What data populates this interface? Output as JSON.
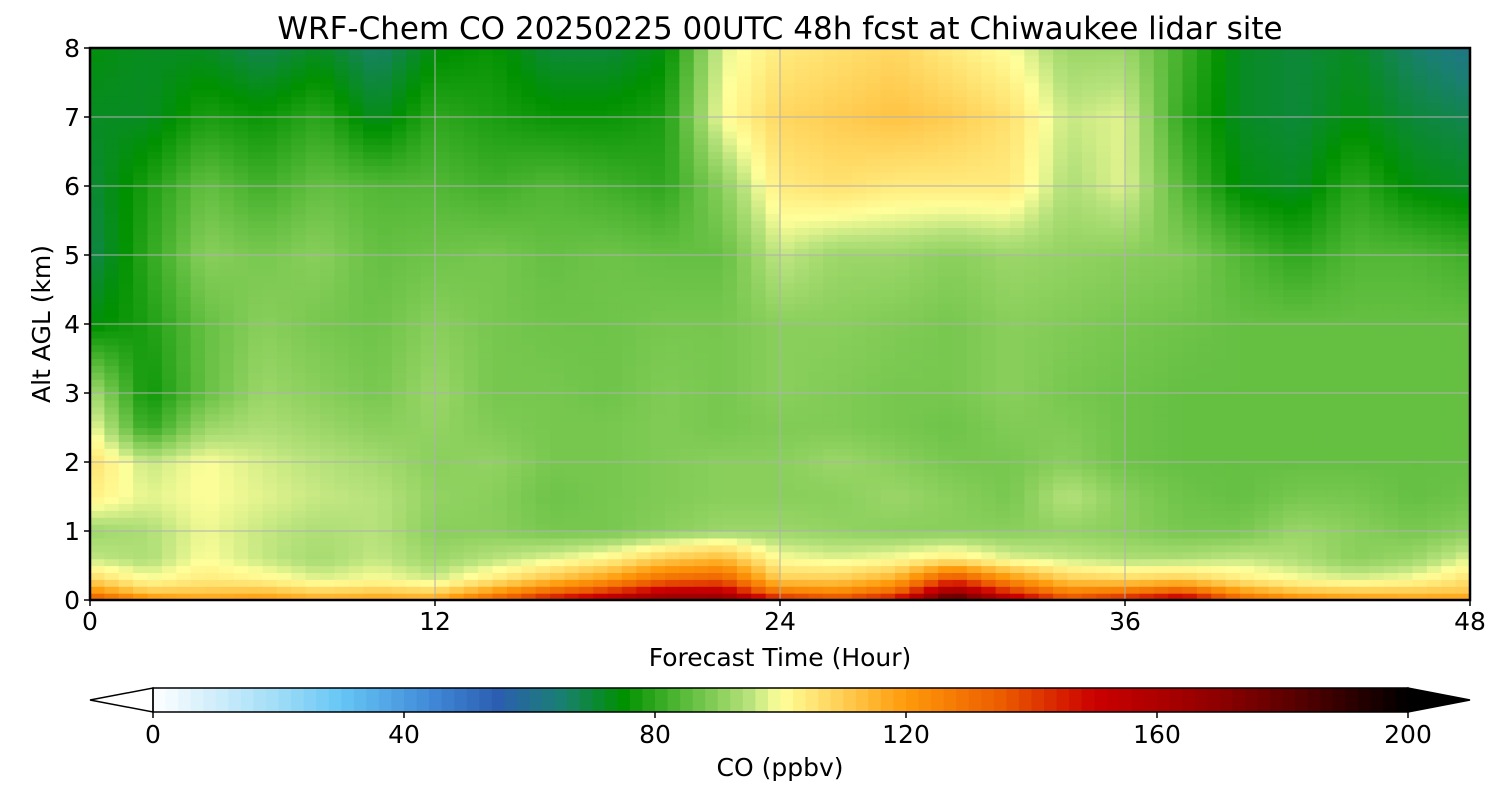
{
  "chart_data": {
    "type": "heatmap",
    "title": "WRF-Chem CO  20250225 00UTC 48h fcst at Chiwaukee lidar site",
    "xlabel": "Forecast Time (Hour)",
    "ylabel": "Alt AGL (km)",
    "xlim": [
      0,
      48
    ],
    "ylim": [
      0,
      8
    ],
    "xticks": [
      0,
      12,
      24,
      36,
      48
    ],
    "xtick_labels": [
      "0",
      "12",
      "24",
      "36",
      "48"
    ],
    "yticks": [
      0,
      1,
      2,
      3,
      4,
      5,
      6,
      7,
      8
    ],
    "ytick_labels": [
      "0",
      "1",
      "2",
      "3",
      "4",
      "5",
      "6",
      "7",
      "8"
    ],
    "grid": true,
    "colorbar": {
      "label": "CO  (ppbv)",
      "orientation": "horizontal",
      "placement": "bottom",
      "range": [
        0,
        200
      ],
      "extend": "both",
      "ticks": [
        0,
        40,
        80,
        120,
        160,
        200
      ],
      "tick_labels": [
        "0",
        "40",
        "80",
        "120",
        "160",
        "200"
      ],
      "colors": [
        {
          "v": 0,
          "c": "#ffffff"
        },
        {
          "v": 20,
          "c": "#9fdcf7"
        },
        {
          "v": 30,
          "c": "#66c6f5"
        },
        {
          "v": 45,
          "c": "#3f86d6"
        },
        {
          "v": 55,
          "c": "#2b5eb0"
        },
        {
          "v": 65,
          "c": "#1a7f73"
        },
        {
          "v": 75,
          "c": "#009100"
        },
        {
          "v": 85,
          "c": "#5cbc3c"
        },
        {
          "v": 95,
          "c": "#b7e27c"
        },
        {
          "v": 100,
          "c": "#ffff9a"
        },
        {
          "v": 110,
          "c": "#ffcd52"
        },
        {
          "v": 120,
          "c": "#ff9a0a"
        },
        {
          "v": 135,
          "c": "#ec5d00"
        },
        {
          "v": 150,
          "c": "#cc0000"
        },
        {
          "v": 170,
          "c": "#8e0000"
        },
        {
          "v": 185,
          "c": "#4a0000"
        },
        {
          "v": 200,
          "c": "#000000"
        }
      ]
    },
    "x": [
      0,
      2,
      4,
      6,
      8,
      10,
      12,
      14,
      16,
      18,
      20,
      22,
      24,
      26,
      28,
      30,
      32,
      34,
      36,
      38,
      40,
      42,
      44,
      46,
      48
    ],
    "y": [
      0,
      0.1,
      0.3,
      0.6,
      1,
      1.5,
      2,
      2.5,
      3,
      4,
      5,
      6,
      7,
      8
    ],
    "z": [
      [
        140,
        125,
        120,
        122,
        118,
        120,
        118,
        135,
        150,
        160,
        170,
        172,
        148,
        142,
        150,
        190,
        160,
        140,
        148,
        158,
        135,
        125,
        122,
        120,
        122
      ],
      [
        125,
        112,
        112,
        114,
        110,
        112,
        110,
        122,
        135,
        145,
        158,
        158,
        130,
        126,
        135,
        170,
        145,
        128,
        132,
        140,
        122,
        114,
        112,
        112,
        112
      ],
      [
        108,
        100,
        104,
        102,
        98,
        100,
        97,
        104,
        112,
        120,
        132,
        135,
        110,
        110,
        116,
        140,
        122,
        110,
        108,
        110,
        104,
        100,
        98,
        100,
        106
      ],
      [
        96,
        94,
        100,
        96,
        93,
        96,
        92,
        95,
        98,
        102,
        110,
        114,
        100,
        98,
        100,
        104,
        98,
        96,
        94,
        94,
        96,
        94,
        90,
        92,
        98
      ],
      [
        92,
        94,
        99,
        96,
        94,
        95,
        90,
        90,
        88,
        88,
        90,
        92,
        92,
        91,
        90,
        90,
        90,
        91,
        90,
        88,
        88,
        92,
        90,
        88,
        90
      ],
      [
        103,
        98,
        100,
        98,
        96,
        95,
        91,
        90,
        87,
        88,
        89,
        90,
        90,
        90,
        92,
        90,
        88,
        95,
        90,
        87,
        86,
        88,
        88,
        86,
        87
      ],
      [
        106,
        96,
        100,
        97,
        95,
        93,
        90,
        91,
        88,
        88,
        89,
        90,
        90,
        92,
        90,
        88,
        88,
        90,
        87,
        86,
        86,
        86,
        86,
        86,
        86
      ],
      [
        100,
        80,
        92,
        94,
        92,
        90,
        91,
        89,
        88,
        88,
        89,
        88,
        89,
        89,
        88,
        87,
        89,
        89,
        87,
        86,
        86,
        86,
        86,
        86,
        86
      ],
      [
        94,
        76,
        86,
        92,
        90,
        88,
        92,
        88,
        88,
        87,
        89,
        88,
        90,
        89,
        88,
        88,
        90,
        88,
        87,
        86,
        86,
        86,
        86,
        86,
        86
      ],
      [
        74,
        78,
        86,
        90,
        88,
        87,
        90,
        88,
        87,
        87,
        88,
        88,
        90,
        90,
        89,
        88,
        90,
        89,
        88,
        87,
        86,
        86,
        86,
        86,
        86
      ],
      [
        68,
        80,
        90,
        88,
        90,
        86,
        87,
        88,
        86,
        87,
        86,
        86,
        96,
        92,
        92,
        90,
        92,
        91,
        90,
        89,
        84,
        80,
        84,
        84,
        82
      ],
      [
        70,
        78,
        86,
        82,
        86,
        84,
        84,
        82,
        84,
        82,
        80,
        90,
        104,
        106,
        104,
        104,
        104,
        94,
        98,
        84,
        74,
        72,
        80,
        74,
        72
      ],
      [
        72,
        72,
        78,
        76,
        80,
        72,
        80,
        78,
        76,
        76,
        78,
        100,
        108,
        110,
        112,
        110,
        106,
        96,
        98,
        80,
        72,
        70,
        74,
        70,
        68
      ],
      [
        74,
        72,
        72,
        68,
        72,
        66,
        74,
        76,
        70,
        70,
        74,
        98,
        104,
        106,
        108,
        104,
        100,
        92,
        92,
        82,
        72,
        70,
        72,
        66,
        62
      ]
    ]
  }
}
